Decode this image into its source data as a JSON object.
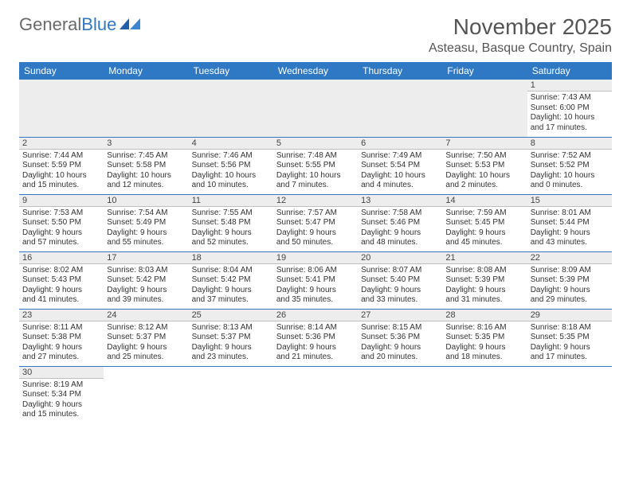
{
  "brand": {
    "part1": "General",
    "part2": "Blue"
  },
  "title": "November 2025",
  "location": "Asteasu, Basque Country, Spain",
  "colors": {
    "header_bg": "#2f78c4",
    "row_divider": "#2f78c4",
    "daynum_bg": "#ededed",
    "text": "#333333",
    "title_text": "#555555"
  },
  "day_headers": [
    "Sunday",
    "Monday",
    "Tuesday",
    "Wednesday",
    "Thursday",
    "Friday",
    "Saturday"
  ],
  "weeks": [
    [
      null,
      null,
      null,
      null,
      null,
      null,
      {
        "n": "1",
        "sunrise": "7:43 AM",
        "sunset": "6:00 PM",
        "day_h": "10",
        "day_m": "17"
      }
    ],
    [
      {
        "n": "2",
        "sunrise": "7:44 AM",
        "sunset": "5:59 PM",
        "day_h": "10",
        "day_m": "15"
      },
      {
        "n": "3",
        "sunrise": "7:45 AM",
        "sunset": "5:58 PM",
        "day_h": "10",
        "day_m": "12"
      },
      {
        "n": "4",
        "sunrise": "7:46 AM",
        "sunset": "5:56 PM",
        "day_h": "10",
        "day_m": "10"
      },
      {
        "n": "5",
        "sunrise": "7:48 AM",
        "sunset": "5:55 PM",
        "day_h": "10",
        "day_m": "7"
      },
      {
        "n": "6",
        "sunrise": "7:49 AM",
        "sunset": "5:54 PM",
        "day_h": "10",
        "day_m": "4"
      },
      {
        "n": "7",
        "sunrise": "7:50 AM",
        "sunset": "5:53 PM",
        "day_h": "10",
        "day_m": "2"
      },
      {
        "n": "8",
        "sunrise": "7:52 AM",
        "sunset": "5:52 PM",
        "day_h": "10",
        "day_m": "0"
      }
    ],
    [
      {
        "n": "9",
        "sunrise": "7:53 AM",
        "sunset": "5:50 PM",
        "day_h": "9",
        "day_m": "57"
      },
      {
        "n": "10",
        "sunrise": "7:54 AM",
        "sunset": "5:49 PM",
        "day_h": "9",
        "day_m": "55"
      },
      {
        "n": "11",
        "sunrise": "7:55 AM",
        "sunset": "5:48 PM",
        "day_h": "9",
        "day_m": "52"
      },
      {
        "n": "12",
        "sunrise": "7:57 AM",
        "sunset": "5:47 PM",
        "day_h": "9",
        "day_m": "50"
      },
      {
        "n": "13",
        "sunrise": "7:58 AM",
        "sunset": "5:46 PM",
        "day_h": "9",
        "day_m": "48"
      },
      {
        "n": "14",
        "sunrise": "7:59 AM",
        "sunset": "5:45 PM",
        "day_h": "9",
        "day_m": "45"
      },
      {
        "n": "15",
        "sunrise": "8:01 AM",
        "sunset": "5:44 PM",
        "day_h": "9",
        "day_m": "43"
      }
    ],
    [
      {
        "n": "16",
        "sunrise": "8:02 AM",
        "sunset": "5:43 PM",
        "day_h": "9",
        "day_m": "41"
      },
      {
        "n": "17",
        "sunrise": "8:03 AM",
        "sunset": "5:42 PM",
        "day_h": "9",
        "day_m": "39"
      },
      {
        "n": "18",
        "sunrise": "8:04 AM",
        "sunset": "5:42 PM",
        "day_h": "9",
        "day_m": "37"
      },
      {
        "n": "19",
        "sunrise": "8:06 AM",
        "sunset": "5:41 PM",
        "day_h": "9",
        "day_m": "35"
      },
      {
        "n": "20",
        "sunrise": "8:07 AM",
        "sunset": "5:40 PM",
        "day_h": "9",
        "day_m": "33"
      },
      {
        "n": "21",
        "sunrise": "8:08 AM",
        "sunset": "5:39 PM",
        "day_h": "9",
        "day_m": "31"
      },
      {
        "n": "22",
        "sunrise": "8:09 AM",
        "sunset": "5:39 PM",
        "day_h": "9",
        "day_m": "29"
      }
    ],
    [
      {
        "n": "23",
        "sunrise": "8:11 AM",
        "sunset": "5:38 PM",
        "day_h": "9",
        "day_m": "27"
      },
      {
        "n": "24",
        "sunrise": "8:12 AM",
        "sunset": "5:37 PM",
        "day_h": "9",
        "day_m": "25"
      },
      {
        "n": "25",
        "sunrise": "8:13 AM",
        "sunset": "5:37 PM",
        "day_h": "9",
        "day_m": "23"
      },
      {
        "n": "26",
        "sunrise": "8:14 AM",
        "sunset": "5:36 PM",
        "day_h": "9",
        "day_m": "21"
      },
      {
        "n": "27",
        "sunrise": "8:15 AM",
        "sunset": "5:36 PM",
        "day_h": "9",
        "day_m": "20"
      },
      {
        "n": "28",
        "sunrise": "8:16 AM",
        "sunset": "5:35 PM",
        "day_h": "9",
        "day_m": "18"
      },
      {
        "n": "29",
        "sunrise": "8:18 AM",
        "sunset": "5:35 PM",
        "day_h": "9",
        "day_m": "17"
      }
    ],
    [
      {
        "n": "30",
        "sunrise": "8:19 AM",
        "sunset": "5:34 PM",
        "day_h": "9",
        "day_m": "15"
      },
      null,
      null,
      null,
      null,
      null,
      null
    ]
  ],
  "labels": {
    "sunrise_prefix": "Sunrise: ",
    "sunset_prefix": "Sunset: ",
    "daylight_prefix": "Daylight: ",
    "hours_word": " hours",
    "and_word": "and ",
    "minutes_word": " minutes."
  }
}
